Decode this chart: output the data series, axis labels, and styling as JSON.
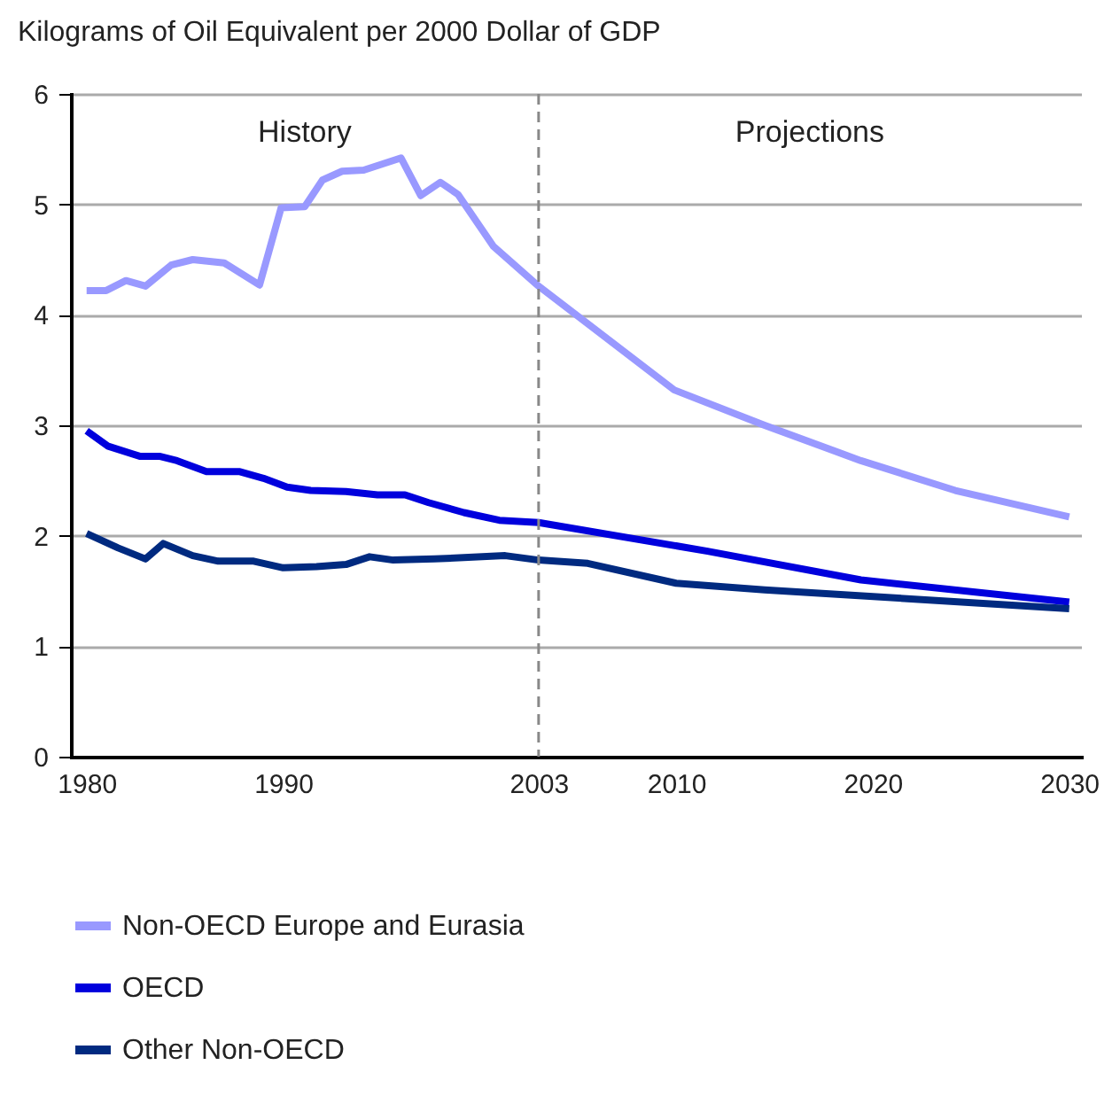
{
  "chart_data": {
    "type": "line",
    "title": "Kilograms of Oil Equivalent per 2000 Dollar of GDP",
    "xlim": [
      1979.2,
      2030.6
    ],
    "xticks": [
      1980,
      1990,
      2003,
      2010,
      2020,
      2030
    ],
    "ylim": [
      0,
      6
    ],
    "yticks": [
      0,
      1,
      2,
      3,
      4,
      5,
      6
    ],
    "grid": "y",
    "legend": "bottom",
    "line_style": "solid",
    "marker": "none",
    "ref_lines": [
      {
        "axis": "x",
        "value": 2003,
        "color": "#888888",
        "line_style": "dashed"
      }
    ],
    "annotations": [
      "History",
      "Projections"
    ],
    "series": [
      {
        "name": "Non-OECD Europe and Eurasia",
        "color": "#9999ff",
        "x": [
          1980,
          1981,
          1982,
          1983,
          1984.3,
          1985.4,
          1987,
          1988.8,
          1989.9,
          1991.1,
          1992,
          1993,
          1994.1,
          1996,
          1997,
          1998,
          1998.9,
          2000.7,
          2003,
          2009.9,
          2014.5,
          2019.4,
          2024.2,
          2030
        ],
        "values": [
          4.22,
          4.22,
          4.31,
          4.26,
          4.45,
          4.5,
          4.47,
          4.27,
          4.97,
          4.98,
          5.22,
          5.3,
          5.31,
          5.42,
          5.08,
          5.2,
          5.09,
          4.62,
          4.26,
          3.32,
          3.0,
          2.68,
          2.41,
          2.17
        ]
      },
      {
        "name": "OECD",
        "color": "#0000dd",
        "x": [
          1980,
          1981.1,
          1982.7,
          1983.7,
          1984.6,
          1986.1,
          1987.8,
          1989,
          1990.2,
          1991.4,
          1993.2,
          1994.8,
          1996.2,
          1997.4,
          1999.2,
          2001,
          2003,
          2011.6,
          2019.4,
          2030
        ],
        "values": [
          2.95,
          2.81,
          2.72,
          2.72,
          2.68,
          2.58,
          2.58,
          2.52,
          2.44,
          2.41,
          2.4,
          2.37,
          2.37,
          2.3,
          2.21,
          2.14,
          2.12,
          1.86,
          1.6,
          1.4
        ]
      },
      {
        "name": "Other Non-OECD",
        "color": "#002a80",
        "x": [
          1980,
          1981.6,
          1983,
          1983.9,
          1985.4,
          1986.7,
          1988.5,
          1990,
          1991.7,
          1993.2,
          1994.4,
          1995.6,
          1997.7,
          2001.3,
          2003,
          2005.5,
          2010,
          2014.5,
          2030
        ],
        "values": [
          2.02,
          1.89,
          1.79,
          1.93,
          1.82,
          1.77,
          1.77,
          1.71,
          1.72,
          1.74,
          1.81,
          1.78,
          1.79,
          1.82,
          1.78,
          1.75,
          1.57,
          1.51,
          1.34
        ]
      }
    ]
  }
}
